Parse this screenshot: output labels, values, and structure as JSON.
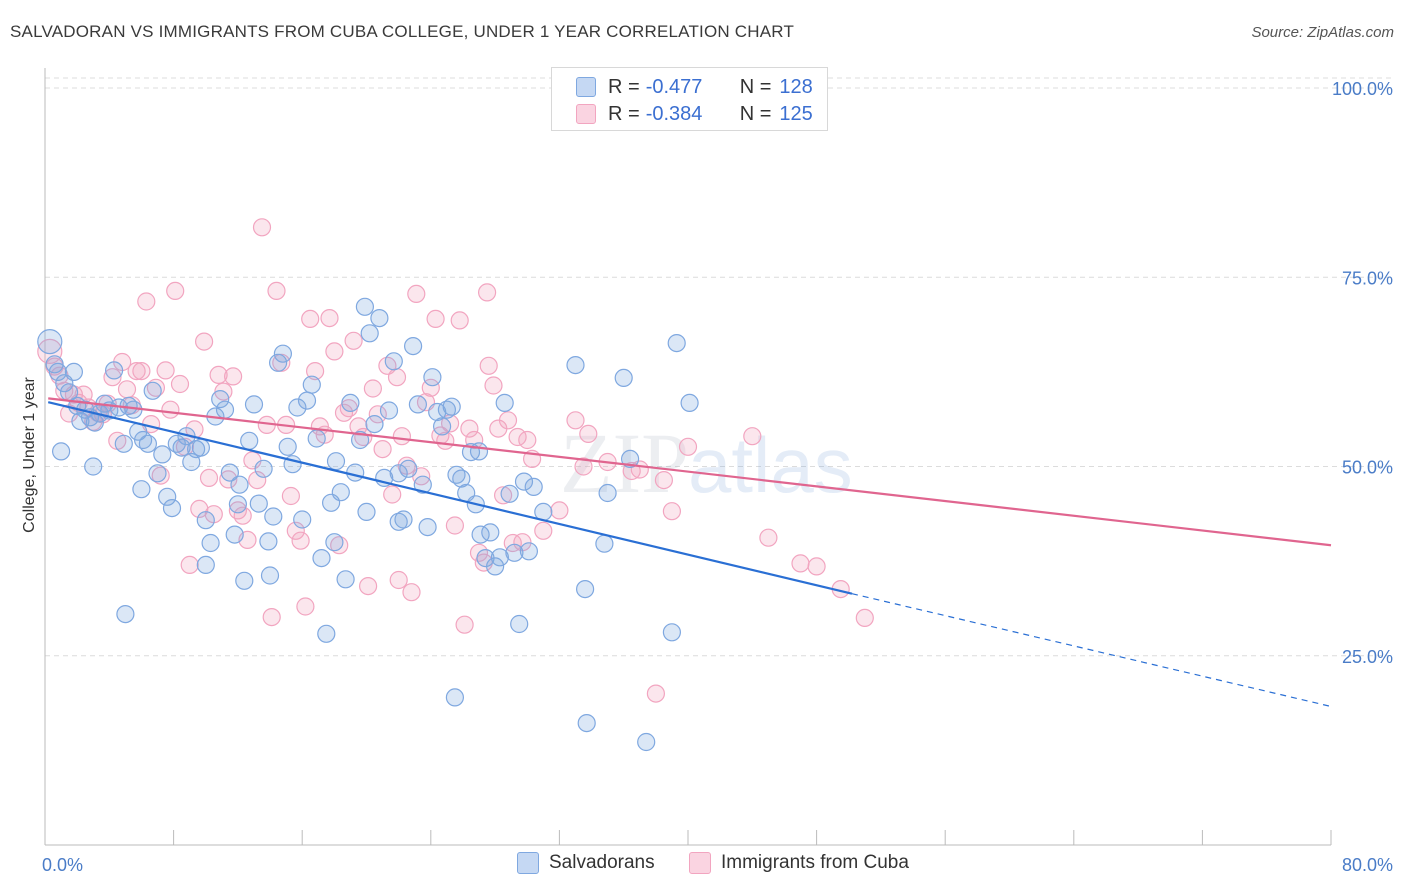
{
  "header": {
    "title": "SALVADORAN VS IMMIGRANTS FROM CUBA COLLEGE, UNDER 1 YEAR CORRELATION CHART",
    "source": "Source: ZipAtlas.com"
  },
  "watermark": {
    "zip": "ZIP",
    "atlas": "atlas"
  },
  "legend": {
    "rows": [
      {
        "r_label": "R =",
        "r_value": "-0.477",
        "n_label": "N =",
        "n_value": "128",
        "color": "#7fa8e0"
      },
      {
        "r_label": "R =",
        "r_value": "-0.384",
        "n_label": "N =",
        "n_value": "125",
        "color": "#f2a5c0"
      }
    ]
  },
  "bottom_legend": [
    {
      "label": "Salvadorans",
      "color": "#7fa8e0"
    },
    {
      "label": "Immigrants from Cuba",
      "color": "#f2a5c0"
    }
  ],
  "chart_data": {
    "type": "scatter",
    "title": "SALVADORAN VS IMMIGRANTS FROM CUBA COLLEGE, UNDER 1 YEAR CORRELATION CHART",
    "xlabel": "",
    "ylabel": "College, Under 1 year",
    "xlim": [
      0,
      80
    ],
    "ylim": [
      0,
      105
    ],
    "x_tick_labels": [
      "0.0%",
      "80.0%"
    ],
    "y_tick_labels": [
      "25.0%",
      "50.0%",
      "75.0%",
      "100.0%"
    ],
    "y_ticks": [
      25,
      50,
      75,
      100
    ],
    "grid": true,
    "legend_position": "top-center",
    "series": [
      {
        "name": "Salvadorans",
        "color": "#7fa8e0",
        "line_color": "#2a6fd4",
        "trend": {
          "x": [
            0.2,
            50.2
          ],
          "y": [
            58.5,
            33.2
          ],
          "dashed_to": [
            80,
            18.3
          ]
        },
        "points": [
          [
            0.3,
            66.5
          ],
          [
            0.6,
            63.5
          ],
          [
            0.8,
            62.5
          ],
          [
            1.2,
            61.0
          ],
          [
            1.5,
            59.8
          ],
          [
            1.8,
            62.5
          ],
          [
            2.0,
            58.0
          ],
          [
            2.2,
            56.0
          ],
          [
            2.5,
            57.5
          ],
          [
            2.8,
            56.5
          ],
          [
            3.1,
            55.8
          ],
          [
            3.4,
            57.0
          ],
          [
            3.7,
            58.3
          ],
          [
            4.0,
            57.4
          ],
          [
            4.3,
            62.7
          ],
          [
            4.6,
            57.8
          ],
          [
            4.9,
            53.0
          ],
          [
            5.2,
            58.0
          ],
          [
            5.5,
            57.5
          ],
          [
            5.8,
            54.6
          ],
          [
            6.1,
            53.5
          ],
          [
            6.4,
            53.0
          ],
          [
            6.7,
            60.0
          ],
          [
            7.0,
            49.1
          ],
          [
            7.3,
            51.6
          ],
          [
            7.6,
            46.0
          ],
          [
            7.9,
            44.5
          ],
          [
            8.2,
            53.0
          ],
          [
            8.5,
            52.5
          ],
          [
            8.8,
            54.0
          ],
          [
            9.1,
            50.6
          ],
          [
            9.4,
            52.3
          ],
          [
            9.7,
            52.5
          ],
          [
            10.0,
            42.9
          ],
          [
            10.3,
            39.9
          ],
          [
            10.6,
            56.6
          ],
          [
            10.9,
            58.9
          ],
          [
            11.2,
            57.5
          ],
          [
            11.5,
            49.2
          ],
          [
            11.8,
            41.0
          ],
          [
            12.1,
            47.6
          ],
          [
            12.4,
            34.9
          ],
          [
            12.7,
            53.4
          ],
          [
            13.0,
            58.2
          ],
          [
            13.3,
            45.1
          ],
          [
            13.6,
            49.7
          ],
          [
            13.9,
            40.1
          ],
          [
            14.2,
            43.4
          ],
          [
            14.5,
            63.7
          ],
          [
            14.8,
            64.9
          ],
          [
            15.1,
            52.6
          ],
          [
            15.4,
            50.3
          ],
          [
            15.7,
            57.8
          ],
          [
            16.0,
            43.0
          ],
          [
            16.3,
            58.7
          ],
          [
            16.6,
            60.8
          ],
          [
            16.9,
            53.7
          ],
          [
            17.2,
            37.9
          ],
          [
            17.5,
            27.9
          ],
          [
            17.8,
            45.2
          ],
          [
            18.1,
            50.7
          ],
          [
            18.4,
            46.6
          ],
          [
            18.7,
            35.1
          ],
          [
            19.0,
            58.4
          ],
          [
            19.3,
            49.2
          ],
          [
            19.6,
            53.5
          ],
          [
            19.9,
            71.1
          ],
          [
            20.2,
            67.6
          ],
          [
            20.5,
            55.6
          ],
          [
            20.8,
            69.6
          ],
          [
            21.1,
            48.5
          ],
          [
            21.4,
            57.4
          ],
          [
            21.7,
            63.9
          ],
          [
            22.0,
            49.1
          ],
          [
            22.3,
            43.0
          ],
          [
            22.6,
            49.7
          ],
          [
            22.9,
            65.9
          ],
          [
            23.2,
            58.2
          ],
          [
            23.5,
            47.6
          ],
          [
            23.8,
            42.0
          ],
          [
            24.1,
            61.8
          ],
          [
            24.4,
            57.2
          ],
          [
            24.7,
            55.3
          ],
          [
            25.0,
            57.5
          ],
          [
            25.3,
            57.9
          ],
          [
            25.6,
            48.9
          ],
          [
            25.9,
            48.4
          ],
          [
            26.2,
            46.5
          ],
          [
            26.5,
            51.9
          ],
          [
            26.8,
            45.0
          ],
          [
            27.1,
            41.0
          ],
          [
            27.4,
            37.9
          ],
          [
            27.7,
            41.3
          ],
          [
            28.0,
            36.8
          ],
          [
            28.3,
            38.0
          ],
          [
            28.6,
            58.4
          ],
          [
            28.9,
            46.4
          ],
          [
            29.2,
            38.6
          ],
          [
            29.5,
            29.2
          ],
          [
            29.8,
            48.0
          ],
          [
            30.1,
            38.8
          ],
          [
            30.4,
            47.3
          ],
          [
            33.0,
            63.4
          ],
          [
            33.6,
            33.8
          ],
          [
            34.8,
            39.8
          ],
          [
            36.4,
            51.0
          ],
          [
            39.3,
            66.3
          ],
          [
            39.0,
            28.1
          ],
          [
            40.1,
            58.4
          ],
          [
            36.0,
            61.7
          ],
          [
            25.5,
            19.5
          ],
          [
            33.7,
            16.1
          ],
          [
            37.4,
            13.6
          ],
          [
            14.0,
            35.6
          ],
          [
            5.0,
            30.5
          ],
          [
            22.0,
            42.7
          ],
          [
            10.0,
            37.0
          ],
          [
            6.0,
            47.0
          ],
          [
            3.0,
            50.0
          ],
          [
            1.0,
            52.0
          ],
          [
            12.0,
            45.0
          ],
          [
            18.0,
            40.0
          ],
          [
            20.0,
            44.0
          ],
          [
            27.0,
            52.0
          ],
          [
            31.0,
            44.0
          ],
          [
            35.0,
            46.5
          ]
        ]
      },
      {
        "name": "Immigrants from Cuba",
        "color": "#f2a5c0",
        "line_color": "#e0658f",
        "trend": {
          "x": [
            0.2,
            80
          ],
          "y": [
            59.0,
            39.6
          ]
        },
        "points": [
          [
            0.3,
            65.2
          ],
          [
            0.6,
            63.2
          ],
          [
            0.9,
            62.0
          ],
          [
            1.2,
            60.0
          ],
          [
            1.5,
            57.0
          ],
          [
            1.8,
            59.5
          ],
          [
            2.1,
            58.4
          ],
          [
            2.4,
            59.5
          ],
          [
            2.7,
            57.8
          ],
          [
            3.0,
            55.9
          ],
          [
            3.3,
            57.1
          ],
          [
            3.6,
            56.9
          ],
          [
            3.9,
            58.3
          ],
          [
            4.2,
            61.8
          ],
          [
            4.5,
            53.4
          ],
          [
            4.8,
            63.8
          ],
          [
            5.1,
            60.2
          ],
          [
            5.4,
            58.1
          ],
          [
            5.7,
            62.6
          ],
          [
            6.0,
            62.6
          ],
          [
            6.3,
            71.8
          ],
          [
            6.6,
            55.6
          ],
          [
            6.9,
            60.4
          ],
          [
            7.2,
            48.8
          ],
          [
            7.5,
            62.7
          ],
          [
            7.8,
            57.5
          ],
          [
            8.1,
            73.2
          ],
          [
            8.4,
            60.9
          ],
          [
            8.7,
            52.6
          ],
          [
            9.0,
            37.0
          ],
          [
            9.3,
            54.9
          ],
          [
            9.6,
            44.4
          ],
          [
            9.9,
            66.5
          ],
          [
            10.2,
            48.5
          ],
          [
            10.5,
            43.7
          ],
          [
            10.8,
            62.1
          ],
          [
            11.1,
            59.9
          ],
          [
            11.4,
            48.3
          ],
          [
            11.7,
            61.9
          ],
          [
            12.0,
            44.2
          ],
          [
            12.3,
            43.5
          ],
          [
            12.6,
            40.3
          ],
          [
            12.9,
            50.8
          ],
          [
            13.2,
            48.2
          ],
          [
            13.5,
            81.6
          ],
          [
            13.8,
            55.5
          ],
          [
            14.1,
            30.1
          ],
          [
            14.4,
            73.2
          ],
          [
            14.7,
            63.7
          ],
          [
            15.0,
            55.5
          ],
          [
            15.3,
            46.1
          ],
          [
            15.6,
            41.5
          ],
          [
            15.9,
            40.2
          ],
          [
            16.2,
            31.5
          ],
          [
            16.5,
            69.5
          ],
          [
            16.8,
            62.6
          ],
          [
            17.1,
            55.3
          ],
          [
            17.4,
            54.2
          ],
          [
            17.7,
            69.6
          ],
          [
            18.0,
            65.2
          ],
          [
            18.3,
            39.6
          ],
          [
            18.6,
            57.1
          ],
          [
            18.9,
            57.7
          ],
          [
            19.2,
            66.6
          ],
          [
            19.5,
            55.3
          ],
          [
            19.8,
            53.9
          ],
          [
            20.1,
            34.2
          ],
          [
            20.4,
            60.3
          ],
          [
            20.7,
            56.9
          ],
          [
            21.0,
            52.3
          ],
          [
            21.3,
            63.3
          ],
          [
            21.6,
            46.3
          ],
          [
            21.9,
            61.8
          ],
          [
            22.2,
            54.0
          ],
          [
            22.5,
            50.1
          ],
          [
            22.8,
            33.4
          ],
          [
            23.1,
            72.8
          ],
          [
            23.4,
            48.7
          ],
          [
            23.7,
            58.5
          ],
          [
            24.0,
            60.4
          ],
          [
            24.3,
            69.5
          ],
          [
            24.6,
            54.1
          ],
          [
            24.9,
            53.4
          ],
          [
            25.2,
            55.7
          ],
          [
            25.5,
            42.2
          ],
          [
            25.8,
            69.3
          ],
          [
            26.1,
            29.1
          ],
          [
            26.4,
            55.0
          ],
          [
            26.7,
            53.5
          ],
          [
            27.0,
            38.6
          ],
          [
            27.3,
            37.3
          ],
          [
            27.6,
            63.3
          ],
          [
            27.9,
            60.7
          ],
          [
            28.2,
            55.0
          ],
          [
            28.5,
            46.2
          ],
          [
            28.8,
            56.1
          ],
          [
            29.1,
            39.9
          ],
          [
            29.4,
            53.9
          ],
          [
            29.7,
            40.0
          ],
          [
            30.0,
            53.5
          ],
          [
            30.3,
            51.0
          ],
          [
            32.0,
            44.2
          ],
          [
            33.0,
            56.1
          ],
          [
            33.8,
            54.3
          ],
          [
            35.0,
            50.6
          ],
          [
            36.5,
            49.4
          ],
          [
            37.0,
            49.6
          ],
          [
            38.5,
            48.2
          ],
          [
            39.0,
            44.1
          ],
          [
            40.0,
            52.6
          ],
          [
            45.0,
            40.6
          ],
          [
            47.0,
            37.2
          ],
          [
            48.0,
            36.8
          ],
          [
            49.5,
            33.8
          ],
          [
            51.0,
            30.0
          ],
          [
            38.0,
            20.0
          ],
          [
            27.5,
            73.0
          ],
          [
            33.5,
            50.0
          ],
          [
            22.0,
            35.0
          ],
          [
            44.0,
            54.0
          ],
          [
            31.0,
            41.5
          ]
        ]
      }
    ]
  }
}
